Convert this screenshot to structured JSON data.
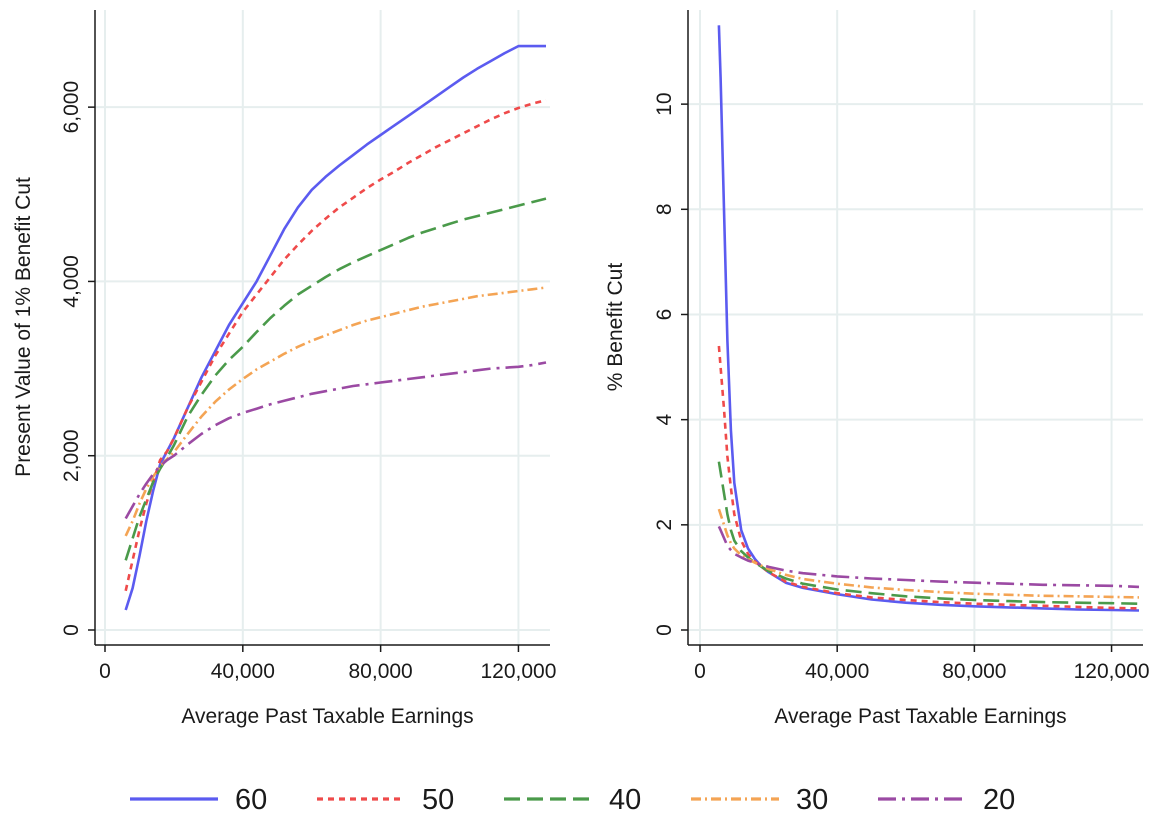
{
  "chart_data": [
    {
      "type": "line",
      "xlabel": "Average Past Taxable Earnings",
      "ylabel": "Present Value of 1% Benefit Cut",
      "xlim": [
        0,
        128000
      ],
      "ylim": [
        0,
        7000
      ],
      "xticks": [
        0,
        40000,
        80000,
        120000
      ],
      "xtick_labels": [
        "0",
        "40,000",
        "80,000",
        "120,000"
      ],
      "yticks": [
        0,
        2000,
        4000,
        6000
      ],
      "ytick_labels": [
        "0",
        "2,000",
        "4,000",
        "6,000"
      ],
      "grid": true,
      "x": [
        6000,
        8000,
        10000,
        12000,
        14000,
        16000,
        18000,
        20000,
        24000,
        28000,
        32000,
        36000,
        40000,
        44000,
        48000,
        52000,
        56000,
        60000,
        64000,
        68000,
        72000,
        76000,
        80000,
        84000,
        88000,
        92000,
        96000,
        100000,
        104000,
        108000,
        112000,
        116000,
        120000,
        124000,
        128000
      ],
      "series": [
        {
          "name": "60",
          "values": [
            230,
            480,
            850,
            1250,
            1600,
            1900,
            2050,
            2200,
            2550,
            2900,
            3200,
            3500,
            3750,
            4000,
            4300,
            4600,
            4850,
            5050,
            5200,
            5330,
            5450,
            5570,
            5680,
            5790,
            5900,
            6010,
            6120,
            6230,
            6340,
            6440,
            6530,
            6620,
            6700,
            6700,
            6700
          ]
        },
        {
          "name": "50",
          "values": [
            450,
            800,
            1150,
            1450,
            1700,
            1950,
            2050,
            2200,
            2550,
            2850,
            3150,
            3400,
            3650,
            3850,
            4050,
            4250,
            4420,
            4580,
            4720,
            4850,
            4960,
            5070,
            5170,
            5260,
            5360,
            5450,
            5540,
            5620,
            5700,
            5780,
            5860,
            5930,
            5990,
            6040,
            6080
          ]
        },
        {
          "name": "40",
          "values": [
            800,
            1050,
            1300,
            1500,
            1700,
            1850,
            1980,
            2120,
            2450,
            2700,
            2920,
            3100,
            3250,
            3420,
            3580,
            3720,
            3850,
            3950,
            4050,
            4140,
            4220,
            4290,
            4360,
            4430,
            4500,
            4560,
            4610,
            4660,
            4710,
            4750,
            4790,
            4830,
            4870,
            4910,
            4950
          ]
        },
        {
          "name": "30",
          "values": [
            1080,
            1250,
            1450,
            1620,
            1760,
            1880,
            1960,
            2040,
            2250,
            2450,
            2620,
            2760,
            2880,
            2990,
            3080,
            3170,
            3250,
            3320,
            3380,
            3440,
            3500,
            3550,
            3590,
            3630,
            3670,
            3710,
            3740,
            3770,
            3800,
            3830,
            3850,
            3870,
            3890,
            3910,
            3930
          ]
        },
        {
          "name": "20",
          "values": [
            1280,
            1420,
            1560,
            1680,
            1790,
            1880,
            1950,
            2000,
            2130,
            2250,
            2350,
            2430,
            2490,
            2540,
            2590,
            2630,
            2670,
            2710,
            2740,
            2770,
            2800,
            2820,
            2840,
            2860,
            2880,
            2900,
            2920,
            2940,
            2960,
            2980,
            3000,
            3010,
            3020,
            3040,
            3070
          ]
        }
      ]
    },
    {
      "type": "line",
      "xlabel": "Average Past Taxable Earnings",
      "ylabel": "% Benefit Cut",
      "xlim": [
        0,
        128000
      ],
      "ylim": [
        0,
        11.6
      ],
      "xticks": [
        0,
        40000,
        80000,
        120000
      ],
      "xtick_labels": [
        "0",
        "40,000",
        "80,000",
        "120,000"
      ],
      "yticks": [
        0,
        2,
        4,
        6,
        8,
        10
      ],
      "ytick_labels": [
        "0",
        "2",
        "4",
        "6",
        "8",
        "10"
      ],
      "grid": true,
      "x": [
        5500,
        6000,
        7000,
        8000,
        9000,
        10000,
        12000,
        14000,
        16000,
        18000,
        20000,
        25000,
        30000,
        40000,
        50000,
        60000,
        70000,
        80000,
        90000,
        100000,
        110000,
        120000,
        128000
      ],
      "series": [
        {
          "name": "60",
          "values": [
            11.5,
            10.5,
            8.0,
            5.5,
            3.8,
            2.8,
            1.9,
            1.55,
            1.35,
            1.2,
            1.1,
            0.9,
            0.8,
            0.68,
            0.58,
            0.52,
            0.48,
            0.45,
            0.43,
            0.41,
            0.39,
            0.38,
            0.37
          ]
        },
        {
          "name": "50",
          "values": [
            5.4,
            5.0,
            4.2,
            3.3,
            2.7,
            2.2,
            1.7,
            1.45,
            1.3,
            1.2,
            1.1,
            0.92,
            0.82,
            0.7,
            0.62,
            0.57,
            0.53,
            0.5,
            0.48,
            0.46,
            0.44,
            0.42,
            0.41
          ]
        },
        {
          "name": "40",
          "values": [
            3.2,
            3.0,
            2.6,
            2.2,
            1.9,
            1.7,
            1.5,
            1.38,
            1.28,
            1.2,
            1.12,
            0.98,
            0.88,
            0.77,
            0.7,
            0.64,
            0.6,
            0.57,
            0.55,
            0.53,
            0.52,
            0.51,
            0.5
          ]
        },
        {
          "name": "30",
          "values": [
            2.3,
            2.2,
            2.0,
            1.8,
            1.65,
            1.55,
            1.42,
            1.35,
            1.28,
            1.22,
            1.16,
            1.05,
            0.97,
            0.88,
            0.81,
            0.76,
            0.72,
            0.69,
            0.67,
            0.65,
            0.64,
            0.63,
            0.62
          ]
        },
        {
          "name": "20",
          "values": [
            1.97,
            1.9,
            1.75,
            1.6,
            1.52,
            1.45,
            1.38,
            1.32,
            1.28,
            1.24,
            1.2,
            1.13,
            1.08,
            1.02,
            0.98,
            0.95,
            0.92,
            0.9,
            0.88,
            0.86,
            0.85,
            0.84,
            0.82
          ]
        }
      ]
    }
  ],
  "legend": {
    "placement": "bottom",
    "items": [
      {
        "label": "60",
        "color": "#5b5bf0",
        "dash": "solid"
      },
      {
        "label": "50",
        "color": "#ef4a4a",
        "dash": "short-dash"
      },
      {
        "label": "40",
        "color": "#4a9a4a",
        "dash": "long-dash"
      },
      {
        "label": "30",
        "color": "#f4a454",
        "dash": "dash-dot"
      },
      {
        "label": "20",
        "color": "#9b4aa3",
        "dash": "long-dash-dot"
      }
    ]
  }
}
